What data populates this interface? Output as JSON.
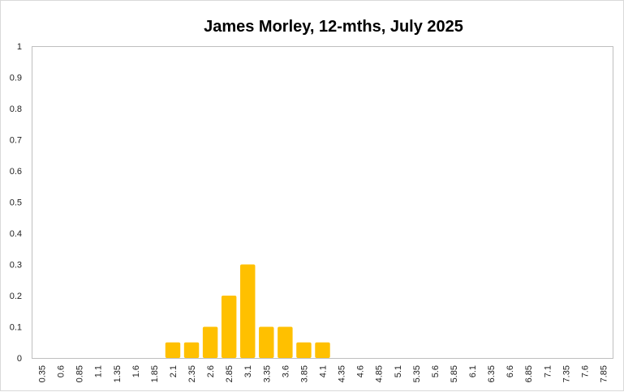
{
  "chart_data": {
    "type": "bar",
    "title": "James Morley, 12-mths, July 2025",
    "categories": [
      "0.35",
      "0.6",
      "0.85",
      "1.1",
      "1.35",
      "1.6",
      "1.85",
      "2.1",
      "2.35",
      "2.6",
      "2.85",
      "3.1",
      "3.35",
      "3.6",
      "3.85",
      "4.1",
      "4.35",
      "4.6",
      "4.85",
      "5.1",
      "5.35",
      "5.6",
      "5.85",
      "6.1",
      "6.35",
      "6.6",
      "6.85",
      "7.1",
      "7.35",
      "7.6",
      "7.85"
    ],
    "values": [
      0,
      0,
      0,
      0,
      0,
      0,
      0,
      0.05,
      0.05,
      0.1,
      0.2,
      0.3,
      0.1,
      0.1,
      0.05,
      0.05,
      0,
      0,
      0,
      0,
      0,
      0,
      0,
      0,
      0,
      0,
      0,
      0,
      0,
      0,
      0
    ],
    "ylim": [
      0,
      1
    ],
    "yticks": [
      "0",
      "0.1",
      "0.2",
      "0.3",
      "0.4",
      "0.5",
      "0.6",
      "0.7",
      "0.8",
      "0.9",
      "1"
    ],
    "grid": false,
    "legend": "none",
    "bar_color": "#FFC000"
  }
}
